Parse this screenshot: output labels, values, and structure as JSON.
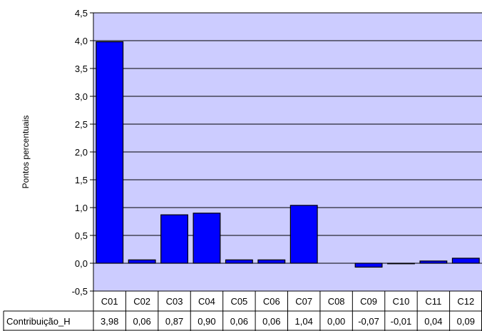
{
  "chart_data": {
    "type": "bar",
    "categories": [
      "C01",
      "C02",
      "C03",
      "C04",
      "C05",
      "C06",
      "C07",
      "C08",
      "C09",
      "C10",
      "C11",
      "C12"
    ],
    "series": [
      {
        "name": "Contribuição_H",
        "values": [
          3.98,
          0.06,
          0.87,
          0.9,
          0.06,
          0.06,
          1.04,
          0.0,
          -0.07,
          -0.01,
          0.04,
          0.09
        ],
        "labels": [
          "3,98",
          "0,06",
          "0,87",
          "0,90",
          "0,06",
          "0,06",
          "1,04",
          "0,00",
          "-0,07",
          "-0,01",
          "0,04",
          "0,09"
        ]
      }
    ],
    "ylabel": "Pontos percentuais",
    "ylim": [
      -0.5,
      4.5
    ],
    "yticks": [
      -0.5,
      0.0,
      0.5,
      1.0,
      1.5,
      2.0,
      2.5,
      3.0,
      3.5,
      4.0,
      4.5
    ],
    "ytick_labels": [
      "-0,5",
      "0,0",
      "0,5",
      "1,0",
      "1,5",
      "2,0",
      "2,5",
      "3,0",
      "3,5",
      "4,0",
      "4,5"
    ],
    "grid": true,
    "legend": "data table below chart",
    "colors": {
      "bar": "#0000ff",
      "plot_background": "#ccccff",
      "bar_edge": "#000000"
    }
  }
}
